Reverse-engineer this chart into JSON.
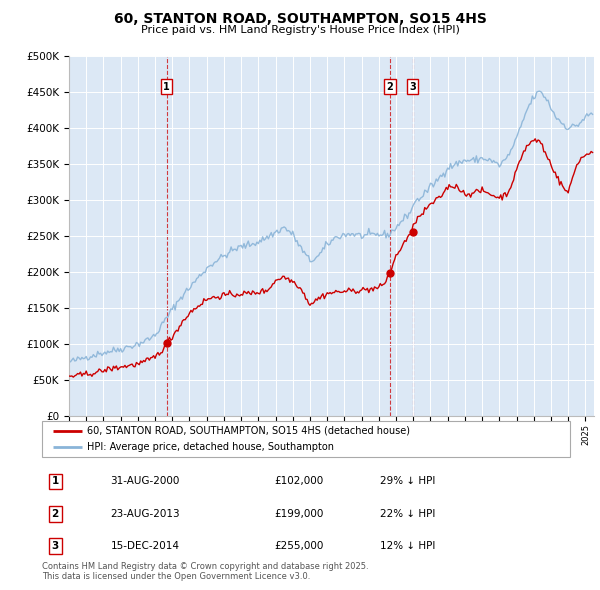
{
  "title": "60, STANTON ROAD, SOUTHAMPTON, SO15 4HS",
  "subtitle": "Price paid vs. HM Land Registry's House Price Index (HPI)",
  "plot_bg_color": "#dce8f5",
  "hpi_color": "#8ab4d8",
  "price_color": "#cc0000",
  "ylim": [
    0,
    500000
  ],
  "yticks": [
    0,
    50000,
    100000,
    150000,
    200000,
    250000,
    300000,
    350000,
    400000,
    450000,
    500000
  ],
  "xlim_start": 1995.0,
  "xlim_end": 2025.5,
  "sales": [
    {
      "num": 1,
      "date_label": "31-AUG-2000",
      "price": 102000,
      "pct": "29%",
      "year": 2000.67
    },
    {
      "num": 2,
      "date_label": "23-AUG-2013",
      "price": 199000,
      "pct": "22%",
      "year": 2013.65
    },
    {
      "num": 3,
      "date_label": "15-DEC-2014",
      "price": 255000,
      "pct": "12%",
      "year": 2014.96
    }
  ],
  "legend_label_red": "60, STANTON ROAD, SOUTHAMPTON, SO15 4HS (detached house)",
  "legend_label_blue": "HPI: Average price, detached house, Southampton",
  "footer": "Contains HM Land Registry data © Crown copyright and database right 2025.\nThis data is licensed under the Open Government Licence v3.0."
}
